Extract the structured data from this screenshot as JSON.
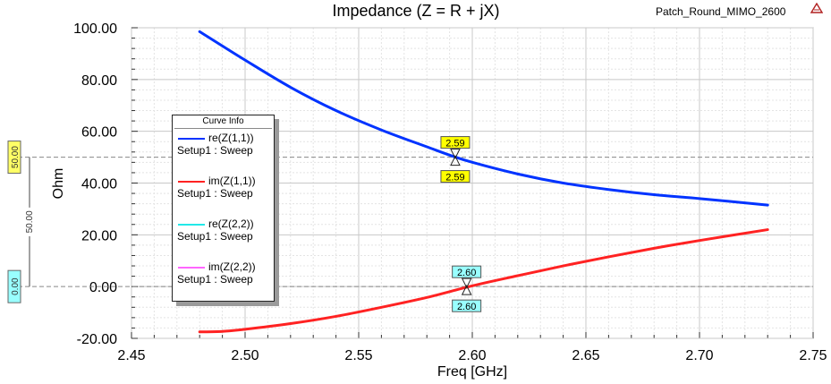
{
  "header": {
    "title": "Impedance (Z = R + jX)",
    "design_name": "Patch_Round_MIMO_2600",
    "logo_icon": "ansys-logo-icon"
  },
  "chart_data": {
    "type": "line",
    "title": "Impedance (Z = R + jX)",
    "xlabel": "Freq [GHz]",
    "ylabel": "Ohm",
    "xlim": [
      2.45,
      2.75
    ],
    "ylim": [
      -20,
      100
    ],
    "xticks": [
      "2.45",
      "2.50",
      "2.55",
      "2.60",
      "2.65",
      "2.70",
      "2.75"
    ],
    "yticks": [
      "-20.00",
      "0.00",
      "20.00",
      "40.00",
      "60.00",
      "80.00",
      "100.00"
    ],
    "grid": true,
    "legend_position": "left",
    "legend_title": "Curve Info",
    "series": [
      {
        "name": "re(Z(1,1))",
        "setup": "Setup1 : Sweep",
        "color": "#0033ff",
        "x": [
          2.48,
          2.5,
          2.52,
          2.54,
          2.56,
          2.58,
          2.59,
          2.6,
          2.62,
          2.64,
          2.66,
          2.68,
          2.7,
          2.73
        ],
        "y": [
          98.5,
          87.5,
          77.0,
          68.0,
          60.5,
          54.0,
          50.8,
          48.0,
          43.5,
          40.0,
          37.5,
          35.5,
          34.0,
          31.5
        ]
      },
      {
        "name": "im(Z(1,1))",
        "setup": "Setup1 : Sweep",
        "color": "#ff2222",
        "x": [
          2.48,
          2.49,
          2.5,
          2.52,
          2.54,
          2.56,
          2.58,
          2.6,
          2.62,
          2.64,
          2.66,
          2.68,
          2.7,
          2.73
        ],
        "y": [
          -17.5,
          -17.3,
          -16.5,
          -14.3,
          -11.5,
          -8.0,
          -4.2,
          0.3,
          4.2,
          8.0,
          11.5,
          14.8,
          17.8,
          22.0
        ]
      },
      {
        "name": "re(Z(2,2))",
        "setup": "Setup1 : Sweep",
        "color": "#22e8e8",
        "x": [],
        "y": []
      },
      {
        "name": "im(Z(2,2))",
        "setup": "Setup1 : Sweep",
        "color": "#ff66ff",
        "x": [],
        "y": []
      }
    ],
    "markers": [
      {
        "label": "2.59",
        "x": 2.5925,
        "y": 50.0,
        "color": "#ffff00",
        "series": "re(Z(1,1))"
      },
      {
        "label": "2.60",
        "x": 2.5975,
        "y": 0.0,
        "color": "#99ffff",
        "series": "im(Z(1,1))"
      }
    ],
    "ref_lines": [
      {
        "y": 50.0,
        "tag": "50.00",
        "tag_color": "#ffff66"
      },
      {
        "y": 0.0,
        "tag": "0.00",
        "tag_color": "#99ffff"
      }
    ],
    "delta_label": "50.00"
  }
}
